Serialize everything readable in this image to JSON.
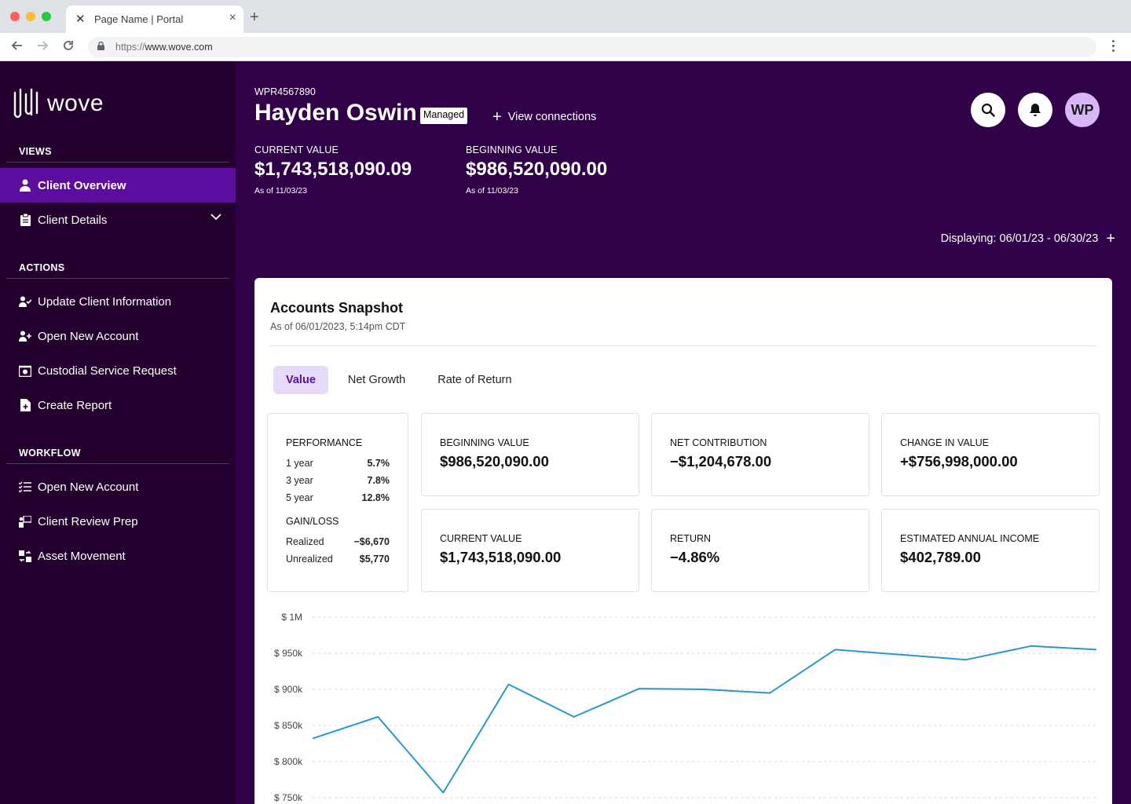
{
  "browser": {
    "tab_title": "Page Name | Portal",
    "favicon": "x-logo-icon",
    "url_scheme": "https://",
    "url_host": "www.wove.com"
  },
  "sidebar": {
    "logo_text": "wove",
    "views_title": "VIEWS",
    "views": [
      {
        "label": "Client Overview",
        "icon": "person-icon",
        "active": true
      },
      {
        "label": "Client Details",
        "icon": "clipboard-icon",
        "expandable": true
      }
    ],
    "actions_title": "ACTIONS",
    "actions": [
      {
        "label": "Update Client Information",
        "icon": "user-check-icon"
      },
      {
        "label": "Open New Account",
        "icon": "user-plus-icon"
      },
      {
        "label": "Custodial Service Request",
        "icon": "money-box-icon"
      },
      {
        "label": "Create Report",
        "icon": "file-plus-icon"
      }
    ],
    "workflow_title": "WORKFLOW",
    "workflow": [
      {
        "label": "Open New Account",
        "icon": "checklist-icon"
      },
      {
        "label": "Client Review Prep",
        "icon": "presenter-icon"
      },
      {
        "label": "Asset Movement",
        "icon": "transfer-icon"
      }
    ]
  },
  "header": {
    "account_id": "WPR4567890",
    "client_name": "Hayden Oswin",
    "badge": "Managed",
    "view_connections": "View connections",
    "avatar_initials": "WP",
    "current_value_label": "CURRENT VALUE",
    "current_value": "$1,743,518,090.09",
    "current_asof": "As of 11/03/23",
    "beginning_value_label": "BEGINNING VALUE",
    "beginning_value": "$986,520,090.00",
    "beginning_asof": "As of 11/03/23",
    "displaying": "Displaying: 06/01/23 - 06/30/23"
  },
  "snapshot": {
    "title": "Accounts Snapshot",
    "asof": "As of 06/01/2023, 5:14pm CDT",
    "tabs": [
      {
        "label": "Value",
        "active": true
      },
      {
        "label": "Net Growth",
        "active": false
      },
      {
        "label": "Rate of Return",
        "active": false
      }
    ],
    "performance_title": "PERFORMANCE",
    "performance": [
      {
        "period": "1 year",
        "value": "5.7%"
      },
      {
        "period": "3 year",
        "value": "7.8%"
      },
      {
        "period": "5 year",
        "value": "12.8%"
      }
    ],
    "gainloss_title": "GAIN/LOSS",
    "gainloss": [
      {
        "label": "Realized",
        "value": "−$6,670"
      },
      {
        "label": "Unrealized",
        "value": "$5,770"
      }
    ],
    "stats": [
      {
        "label": "BEGINNING VALUE",
        "value": "$986,520,090.00"
      },
      {
        "label": "NET CONTRIBUTION",
        "value": "−$1,204,678.00"
      },
      {
        "label": "CHANGE IN VALUE",
        "value": "+$756,998,000.00"
      },
      {
        "label": "CURRENT VALUE",
        "value": "$1,743,518,090.00"
      },
      {
        "label": "RETURN",
        "value": "−4.86%"
      },
      {
        "label": "ESTIMATED ANNUAL INCOME",
        "value": "$402,789.00"
      }
    ]
  },
  "colors": {
    "sidebar_bg": "#24002f",
    "header_bg": "#300049",
    "active_nav": "#5c0da0",
    "line": "#2a96d0"
  },
  "chart_data": {
    "type": "line",
    "title": "",
    "xlabel": "",
    "ylabel": "",
    "ylim": [
      750000,
      1000000
    ],
    "ytick_labels": [
      "$ 1M",
      "$ 950k",
      "$ 900k",
      "$ 850k",
      "$ 800k",
      "$ 750k"
    ],
    "ytick_values": [
      1000000,
      950000,
      900000,
      850000,
      800000,
      750000
    ],
    "grid": true,
    "series": [
      {
        "values": [
          832000,
          862000,
          757000,
          907000,
          862000,
          901000,
          900000,
          895000,
          955000,
          948000,
          941000,
          960000,
          955000
        ]
      }
    ]
  }
}
